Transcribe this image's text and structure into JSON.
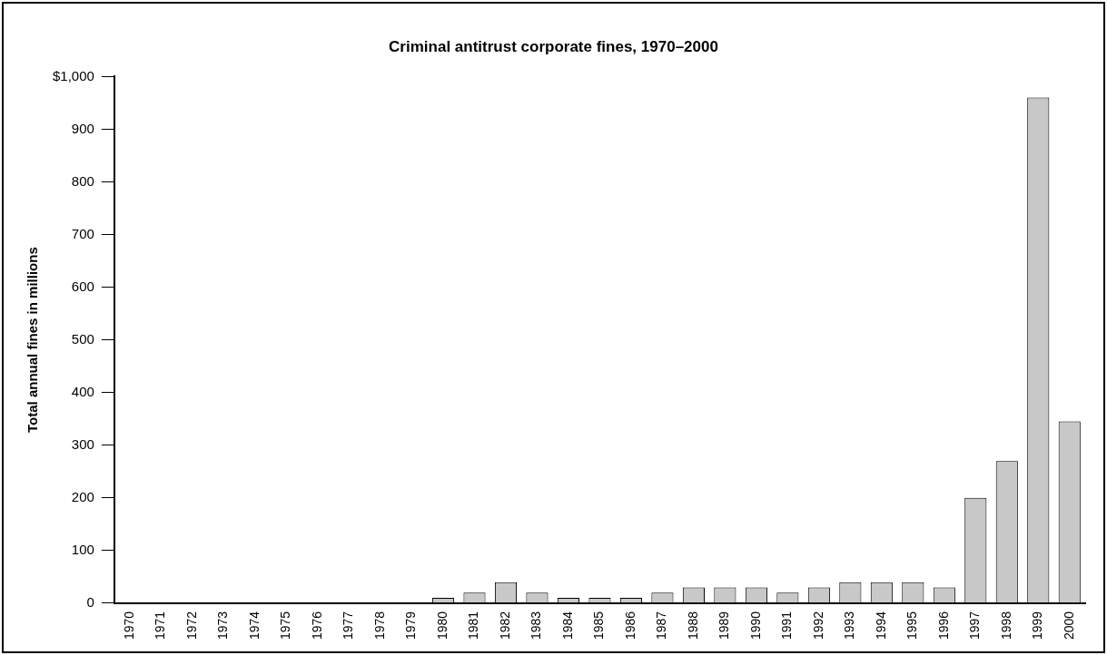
{
  "chart_data": {
    "type": "bar",
    "title": "Criminal antitrust corporate fines, 1970–2000",
    "ylabel": "Total annual fines in millions",
    "categories": [
      "1970",
      "1971",
      "1972",
      "1973",
      "1974",
      "1975",
      "1976",
      "1977",
      "1978",
      "1979",
      "1980",
      "1981",
      "1982",
      "1983",
      "1984",
      "1985",
      "1986",
      "1987",
      "1988",
      "1989",
      "1990",
      "1991",
      "1992",
      "1993",
      "1994",
      "1995",
      "1996",
      "1997",
      "1998",
      "1999",
      "2000"
    ],
    "values": [
      0,
      0,
      0,
      0,
      0,
      0,
      0,
      0,
      0,
      0,
      10,
      20,
      40,
      20,
      10,
      10,
      10,
      20,
      30,
      30,
      30,
      20,
      30,
      40,
      40,
      40,
      30,
      200,
      270,
      960,
      345
    ],
    "color": "#c8c8c8",
    "ylim": [
      0,
      1000
    ],
    "yticks": [
      0,
      100,
      200,
      300,
      400,
      500,
      600,
      700,
      800,
      900,
      {
        "value": 1000,
        "label": "$1,000"
      }
    ],
    "grid": false
  }
}
